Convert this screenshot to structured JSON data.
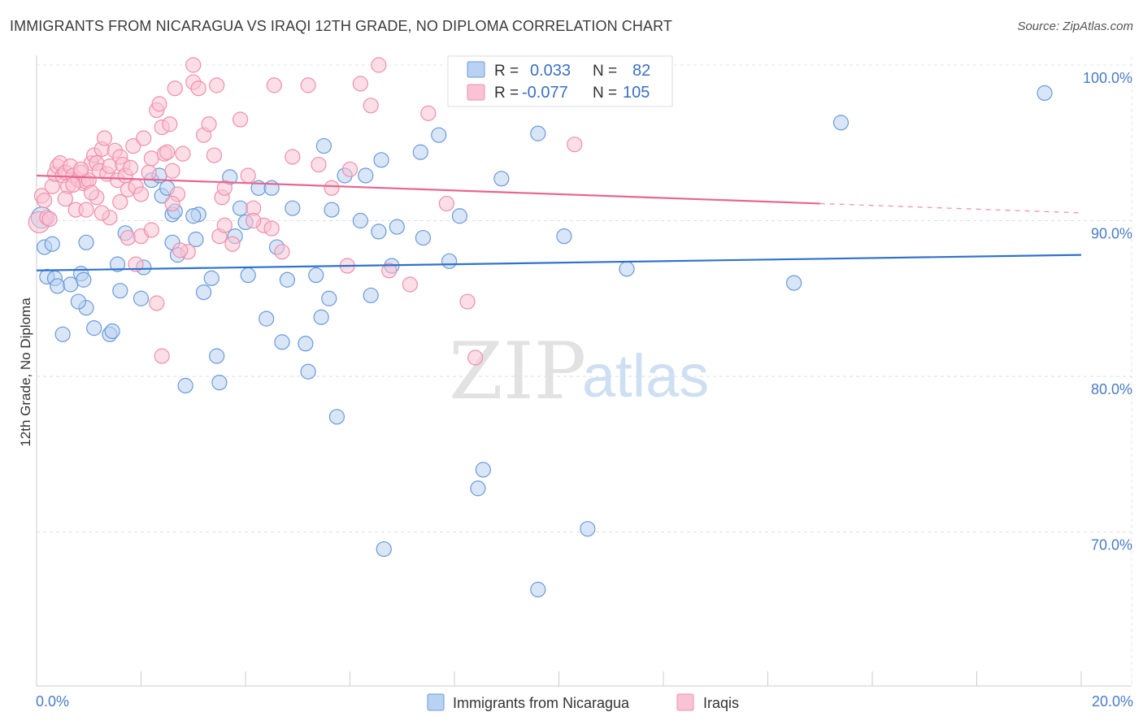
{
  "title": "IMMIGRANTS FROM NICARAGUA VS IRAQI 12TH GRADE, NO DIPLOMA CORRELATION CHART",
  "source": "Source: ZipAtlas.com",
  "watermark": {
    "bold": "ZIP",
    "light": "atlas"
  },
  "colors": {
    "blue_fill": "#b9d2f3",
    "blue_stroke": "#6a9ad8",
    "blue_line": "#2f72cc",
    "pink_fill": "#f9c3d3",
    "pink_stroke": "#ee8fad",
    "pink_line": "#e8658f"
  },
  "legend": {
    "r_label": "R =",
    "n_label": "N =",
    "rows": [
      {
        "series": "blue",
        "r": "0.033",
        "n": "82"
      },
      {
        "series": "pink",
        "r": "-0.077",
        "n": "105"
      }
    ]
  },
  "chart_data": {
    "type": "scatter",
    "xlabel": "",
    "ylabel": "12th Grade, No Diploma",
    "xlim": [
      0,
      20
    ],
    "ylim": [
      61,
      101
    ],
    "x_tick_labels": [
      "0.0%",
      "20.0%"
    ],
    "y_ticks": [
      70,
      80,
      90,
      100
    ],
    "y_tick_labels": [
      "70.0%",
      "80.0%",
      "90.0%",
      "100.0%"
    ],
    "legend_position": "bottom",
    "series": [
      {
        "name": "Immigrants from Nicaragua",
        "color": "blue",
        "trend": {
          "x0": 0,
          "y0": 86.8,
          "x1": 20,
          "y1": 87.8
        },
        "points": [
          [
            0.1,
            90.2
          ],
          [
            0.15,
            88.3
          ],
          [
            0.2,
            86.4
          ],
          [
            0.35,
            86.3
          ],
          [
            0.4,
            85.8
          ],
          [
            0.65,
            85.9
          ],
          [
            0.5,
            82.7
          ],
          [
            0.85,
            86.6
          ],
          [
            0.9,
            86.2
          ],
          [
            0.95,
            84.4
          ],
          [
            0.8,
            84.8
          ],
          [
            0.95,
            88.6
          ],
          [
            1.1,
            83.1
          ],
          [
            1.4,
            82.7
          ],
          [
            1.6,
            85.5
          ],
          [
            1.55,
            87.2
          ],
          [
            1.7,
            89.2
          ],
          [
            2.05,
            87.0
          ],
          [
            2.0,
            85.0
          ],
          [
            2.2,
            92.6
          ],
          [
            2.35,
            92.9
          ],
          [
            2.4,
            91.6
          ],
          [
            2.5,
            92.1
          ],
          [
            2.6,
            90.4
          ],
          [
            2.6,
            88.6
          ],
          [
            2.65,
            90.6
          ],
          [
            2.7,
            87.8
          ],
          [
            2.85,
            79.4
          ],
          [
            3.05,
            88.8
          ],
          [
            3.1,
            90.4
          ],
          [
            3.2,
            85.4
          ],
          [
            3.35,
            86.3
          ],
          [
            3.45,
            81.3
          ],
          [
            3.5,
            79.6
          ],
          [
            3.7,
            92.8
          ],
          [
            3.8,
            89.0
          ],
          [
            3.9,
            90.8
          ],
          [
            4.0,
            89.9
          ],
          [
            4.25,
            92.1
          ],
          [
            4.4,
            83.7
          ],
          [
            4.5,
            92.1
          ],
          [
            4.6,
            88.3
          ],
          [
            4.7,
            82.2
          ],
          [
            4.8,
            86.2
          ],
          [
            4.9,
            90.8
          ],
          [
            5.15,
            82.1
          ],
          [
            5.2,
            80.3
          ],
          [
            5.35,
            86.5
          ],
          [
            5.45,
            83.8
          ],
          [
            5.5,
            94.8
          ],
          [
            5.6,
            85.0
          ],
          [
            5.65,
            90.7
          ],
          [
            5.75,
            77.4
          ],
          [
            5.9,
            92.9
          ],
          [
            6.2,
            90.0
          ],
          [
            6.3,
            92.9
          ],
          [
            6.4,
            85.2
          ],
          [
            6.55,
            89.3
          ],
          [
            6.6,
            93.9
          ],
          [
            6.65,
            68.9
          ],
          [
            6.8,
            87.1
          ],
          [
            6.9,
            89.6
          ],
          [
            7.35,
            94.4
          ],
          [
            7.4,
            88.9
          ],
          [
            7.7,
            95.5
          ],
          [
            7.9,
            87.4
          ],
          [
            8.1,
            90.3
          ],
          [
            8.45,
            72.8
          ],
          [
            8.55,
            74.0
          ],
          [
            8.9,
            92.7
          ],
          [
            9.6,
            95.6
          ],
          [
            9.6,
            66.3
          ],
          [
            10.1,
            89.0
          ],
          [
            10.55,
            70.2
          ],
          [
            11.3,
            86.9
          ],
          [
            14.5,
            86.0
          ],
          [
            15.4,
            96.3
          ],
          [
            19.3,
            98.2
          ],
          [
            0.3,
            88.5
          ],
          [
            1.45,
            82.9
          ],
          [
            4.05,
            86.5
          ],
          [
            3.0,
            90.3
          ]
        ]
      },
      {
        "name": "Iraqis",
        "color": "pink",
        "trend": {
          "x0": 0,
          "y0": 92.9,
          "x1": 15.0,
          "y1": 91.1,
          "dash_x1": 20,
          "dash_y1": 90.5
        },
        "points": [
          [
            0.05,
            89.9
          ],
          [
            0.1,
            91.6
          ],
          [
            0.15,
            91.3
          ],
          [
            0.2,
            90.2
          ],
          [
            0.25,
            90.1
          ],
          [
            0.3,
            92.2
          ],
          [
            0.35,
            93.0
          ],
          [
            0.4,
            93.5
          ],
          [
            0.45,
            93.7
          ],
          [
            0.5,
            92.9
          ],
          [
            0.55,
            93.1
          ],
          [
            0.6,
            92.2
          ],
          [
            0.65,
            93.5
          ],
          [
            0.7,
            92.9
          ],
          [
            0.75,
            90.7
          ],
          [
            0.8,
            92.6
          ],
          [
            0.85,
            93.1
          ],
          [
            0.9,
            92.4
          ],
          [
            0.95,
            92.5
          ],
          [
            1.0,
            92.6
          ],
          [
            1.05,
            93.7
          ],
          [
            1.1,
            94.2
          ],
          [
            1.15,
            93.7
          ],
          [
            1.2,
            93.2
          ],
          [
            1.25,
            94.6
          ],
          [
            1.3,
            95.3
          ],
          [
            1.35,
            93.0
          ],
          [
            1.4,
            93.5
          ],
          [
            1.5,
            94.5
          ],
          [
            1.55,
            92.6
          ],
          [
            1.6,
            94.1
          ],
          [
            1.65,
            93.6
          ],
          [
            1.7,
            92.9
          ],
          [
            1.75,
            92.0
          ],
          [
            1.8,
            93.4
          ],
          [
            1.85,
            94.8
          ],
          [
            1.9,
            92.2
          ],
          [
            2.0,
            91.7
          ],
          [
            2.05,
            95.3
          ],
          [
            2.15,
            93.1
          ],
          [
            2.2,
            94.0
          ],
          [
            2.3,
            97.1
          ],
          [
            2.35,
            97.5
          ],
          [
            2.4,
            96.0
          ],
          [
            2.45,
            94.3
          ],
          [
            2.5,
            94.4
          ],
          [
            2.55,
            96.2
          ],
          [
            2.6,
            93.2
          ],
          [
            2.65,
            98.5
          ],
          [
            2.7,
            91.7
          ],
          [
            2.8,
            94.3
          ],
          [
            2.9,
            88.0
          ],
          [
            3.0,
            98.9
          ],
          [
            3.1,
            98.5
          ],
          [
            3.2,
            95.5
          ],
          [
            3.3,
            96.2
          ],
          [
            3.4,
            94.2
          ],
          [
            3.45,
            98.7
          ],
          [
            3.5,
            89.0
          ],
          [
            3.55,
            91.5
          ],
          [
            3.6,
            89.7
          ],
          [
            3.75,
            88.5
          ],
          [
            3.9,
            96.5
          ],
          [
            4.05,
            92.9
          ],
          [
            4.15,
            90.8
          ],
          [
            4.35,
            89.7
          ],
          [
            4.5,
            89.5
          ],
          [
            4.55,
            98.7
          ],
          [
            4.7,
            88.0
          ],
          [
            4.9,
            94.1
          ],
          [
            5.2,
            98.7
          ],
          [
            5.4,
            93.6
          ],
          [
            5.65,
            92.1
          ],
          [
            5.95,
            87.1
          ],
          [
            6.0,
            93.3
          ],
          [
            6.2,
            98.8
          ],
          [
            6.4,
            97.4
          ],
          [
            6.55,
            100.0
          ],
          [
            6.75,
            86.8
          ],
          [
            7.15,
            85.9
          ],
          [
            7.5,
            96.9
          ],
          [
            7.85,
            91.1
          ],
          [
            8.25,
            84.8
          ],
          [
            8.4,
            81.2
          ],
          [
            10.3,
            94.9
          ],
          [
            0.55,
            91.4
          ],
          [
            0.7,
            92.3
          ],
          [
            0.95,
            90.7
          ],
          [
            1.15,
            91.5
          ],
          [
            1.4,
            90.2
          ],
          [
            1.6,
            91.2
          ],
          [
            1.75,
            88.9
          ],
          [
            1.9,
            87.2
          ],
          [
            2.0,
            89.0
          ],
          [
            2.2,
            89.4
          ],
          [
            2.3,
            84.7
          ],
          [
            2.4,
            81.3
          ],
          [
            2.6,
            91.1
          ],
          [
            2.75,
            88.1
          ],
          [
            3.0,
            100.0
          ],
          [
            3.6,
            92.1
          ],
          [
            4.15,
            90.0
          ],
          [
            0.85,
            93.3
          ],
          [
            1.05,
            91.8
          ],
          [
            1.25,
            90.5
          ]
        ]
      }
    ]
  }
}
